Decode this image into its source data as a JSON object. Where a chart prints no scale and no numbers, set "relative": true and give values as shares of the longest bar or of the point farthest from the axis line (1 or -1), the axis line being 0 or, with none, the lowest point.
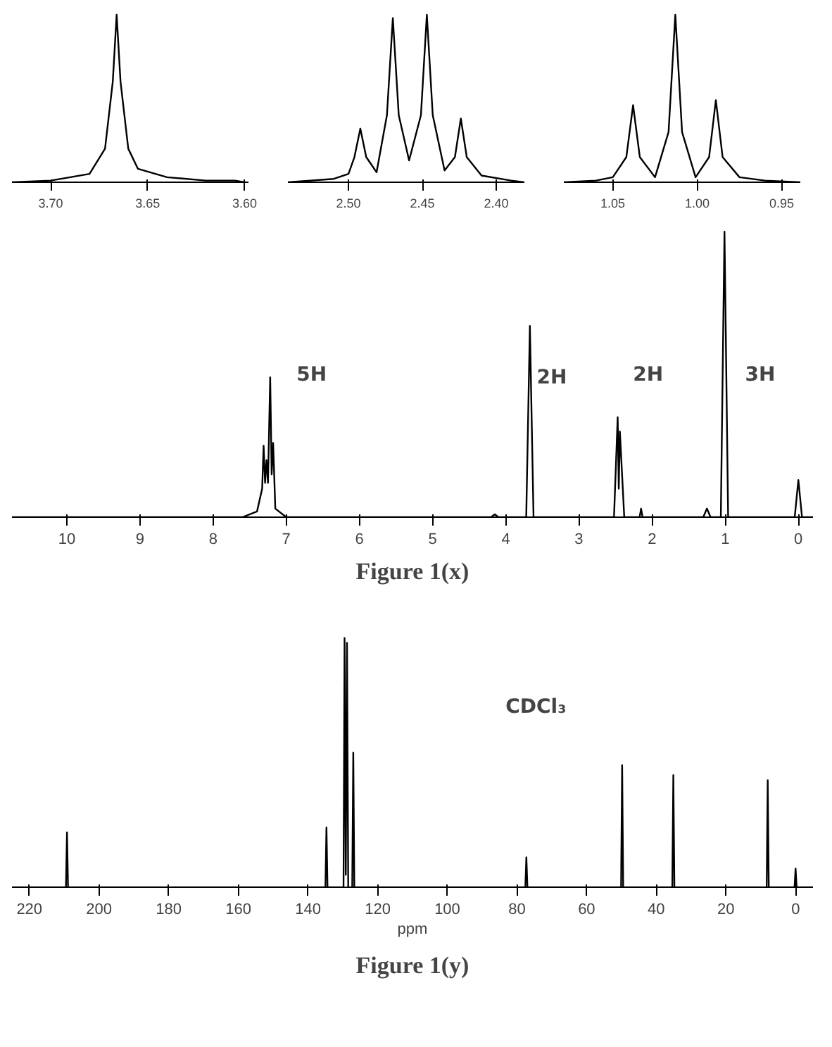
{
  "chart_data": [
    {
      "type": "line",
      "relative": true,
      "grid": false,
      "xlim": [
        3.72,
        3.598
      ],
      "xticks": [
        {
          "value": 3.7,
          "label": "3.70"
        },
        {
          "value": 3.65,
          "label": "3.65"
        },
        {
          "value": 3.6,
          "label": "3.60"
        }
      ],
      "series": [
        {
          "color": "#000000",
          "x": [
            3.72,
            3.7,
            3.68,
            3.672,
            3.668,
            3.666,
            3.664,
            3.66,
            3.655,
            3.64,
            3.62,
            3.605,
            3.6
          ],
          "values": [
            0,
            0.01,
            0.05,
            0.2,
            0.6,
            1,
            0.6,
            0.2,
            0.08,
            0.03,
            0.01,
            0.01,
            0
          ]
        }
      ]
    },
    {
      "type": "line",
      "relative": true,
      "grid": false,
      "xlim": [
        2.541,
        2.381
      ],
      "xticks": [
        {
          "value": 2.5,
          "label": "2.50"
        },
        {
          "value": 2.45,
          "label": "2.45"
        },
        {
          "value": 2.4,
          "label": "2.40"
        }
      ],
      "series": [
        {
          "color": "#000000",
          "x": [
            2.541,
            2.51,
            2.5,
            2.496,
            2.492,
            2.488,
            2.481,
            2.474,
            2.47,
            2.466,
            2.459,
            2.451,
            2.447,
            2.443,
            2.435,
            2.428,
            2.424,
            2.42,
            2.41,
            2.39,
            2.381
          ],
          "values": [
            0,
            0.02,
            0.05,
            0.15,
            0.32,
            0.15,
            0.06,
            0.4,
            0.98,
            0.4,
            0.13,
            0.4,
            1,
            0.4,
            0.07,
            0.15,
            0.38,
            0.15,
            0.04,
            0.01,
            0
          ]
        }
      ]
    },
    {
      "type": "line",
      "relative": true,
      "grid": false,
      "xlim": [
        1.079,
        0.939
      ],
      "xticks": [
        {
          "value": 1.05,
          "label": "1.05"
        },
        {
          "value": 1.0,
          "label": "1.00"
        },
        {
          "value": 0.95,
          "label": "0.95"
        }
      ],
      "series": [
        {
          "color": "#000000",
          "x": [
            1.079,
            1.06,
            1.05,
            1.042,
            1.038,
            1.034,
            1.025,
            1.017,
            1.013,
            1.009,
            1.001,
            0.993,
            0.989,
            0.985,
            0.975,
            0.96,
            0.939
          ],
          "values": [
            0,
            0.01,
            0.03,
            0.15,
            0.46,
            0.15,
            0.03,
            0.3,
            1,
            0.3,
            0.03,
            0.15,
            0.49,
            0.15,
            0.03,
            0.01,
            0
          ]
        }
      ]
    },
    {
      "type": "line",
      "title": "Figure 1(x)",
      "relative": true,
      "grid": false,
      "xlim": [
        10.75,
        -0.2
      ],
      "xticks": [
        10,
        9,
        8,
        7,
        6,
        5,
        4,
        3,
        2,
        1,
        0
      ],
      "annotations": [
        "5H",
        "2H",
        "2H",
        "3H"
      ],
      "series": [
        {
          "color": "#000000",
          "x": [
            10.75,
            7.6,
            7.4,
            7.33,
            7.31,
            7.29,
            7.27,
            7.25,
            7.22,
            7.2,
            7.18,
            7.15,
            7.0,
            4.2,
            4.15,
            4.1,
            3.72,
            3.67,
            3.62,
            2.52,
            2.47,
            2.455,
            2.44,
            2.38,
            2.17,
            2.15,
            2.13,
            1.3,
            1.25,
            1.2,
            1.06,
            1.01,
            0.96,
            0.05,
            0.0,
            -0.05,
            -0.2
          ],
          "values": [
            0,
            0,
            0.02,
            0.1,
            0.25,
            0.12,
            0.2,
            0.12,
            0.49,
            0.15,
            0.26,
            0.03,
            0,
            0,
            0.01,
            0,
            0,
            0.67,
            0,
            0,
            0.35,
            0.1,
            0.3,
            0,
            0,
            0.03,
            0,
            0,
            0.03,
            0,
            0,
            1.0,
            0,
            0,
            0.13,
            0,
            0
          ]
        }
      ]
    },
    {
      "type": "line",
      "title": "Figure 1(y)",
      "xlabel": "ppm",
      "relative": true,
      "grid": false,
      "xlim": [
        225,
        -5
      ],
      "xticks": [
        220,
        200,
        180,
        160,
        140,
        120,
        100,
        80,
        60,
        40,
        20,
        0
      ],
      "annotations": [
        "CDCl₃"
      ],
      "series": [
        {
          "color": "#000000",
          "x": [
            225,
            209.5,
            209.2,
            208.9,
            135,
            134.7,
            134.4,
            129.8,
            129.5,
            129.15,
            128.8,
            128.45,
            127.3,
            127,
            126.7,
            77.6,
            77.3,
            77.0,
            50.1,
            49.8,
            49.5,
            35.4,
            35.1,
            34.8,
            8.3,
            8.0,
            7.7,
            0.3,
            0,
            -0.3,
            -5
          ],
          "values": [
            0,
            0,
            0.22,
            0,
            0,
            0.24,
            0,
            0,
            1,
            0.05,
            0.98,
            0,
            0,
            0.54,
            0,
            0,
            0.12,
            0,
            0,
            0.49,
            0,
            0,
            0.45,
            0,
            0,
            0.43,
            0,
            0,
            0.075,
            0,
            0
          ]
        }
      ]
    }
  ]
}
